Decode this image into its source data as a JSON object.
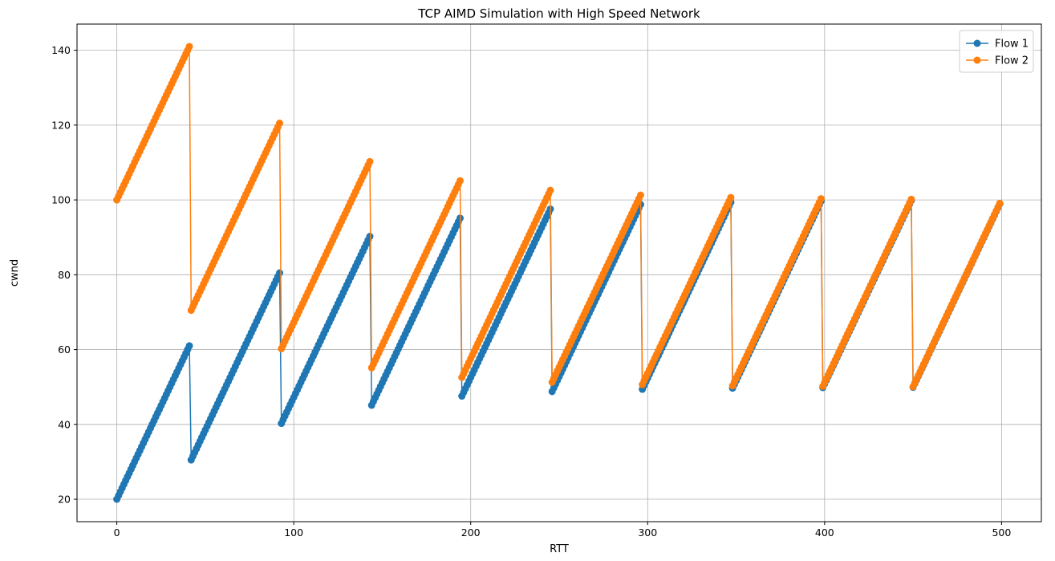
{
  "chart_data": {
    "type": "line",
    "title": "TCP AIMD Simulation with High Speed Network",
    "xlabel": "RTT",
    "ylabel": "cwnd",
    "xlim": [
      -22.5,
      522.5
    ],
    "ylim": [
      14,
      147
    ],
    "xticks": [
      0,
      100,
      200,
      300,
      400,
      500
    ],
    "yticks": [
      20,
      40,
      60,
      80,
      100,
      120,
      140
    ],
    "grid": true,
    "legend_position": "top-right",
    "markers": "circle",
    "series": [
      {
        "name": "Flow 1",
        "color": "#1f77b4",
        "x": [
          0,
          41,
          42,
          92,
          93,
          143,
          144,
          194,
          195,
          245,
          246,
          296,
          297,
          347,
          348,
          398,
          399,
          449,
          450,
          499
        ],
        "values": [
          20,
          61,
          30.5,
          80.5,
          40.25,
          90.25,
          45.125,
          95.125,
          47.5625,
          97.5625,
          48.7813,
          98.7813,
          49.3906,
          99.3906,
          49.6953,
          99.6953,
          49.8477,
          99.8477,
          49.9238,
          98.9238
        ]
      },
      {
        "name": "Flow 2",
        "color": "#ff7f0e",
        "x": [
          0,
          41,
          42,
          92,
          93,
          143,
          144,
          194,
          195,
          245,
          246,
          296,
          297,
          347,
          348,
          398,
          399,
          449,
          450,
          499
        ],
        "values": [
          100,
          141,
          70.5,
          120.5,
          60.25,
          110.25,
          55.125,
          105.125,
          52.5625,
          102.5625,
          51.2813,
          101.2813,
          50.6406,
          100.6406,
          50.3203,
          100.3203,
          50.1602,
          100.1602,
          50.0801,
          99.0801
        ]
      }
    ]
  }
}
